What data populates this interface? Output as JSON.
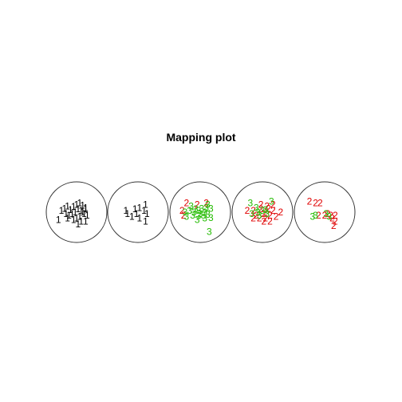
{
  "chart_data": {
    "type": "scatter",
    "title": "Mapping plot",
    "xlabel": "",
    "ylabel": "",
    "legend": "none",
    "grid": false,
    "series_colors": {
      "1": "#000000",
      "2": "#DF0000",
      "3": "#22BB00"
    },
    "panels": [
      {
        "name": "panel-1",
        "points": [
          {
            "x": -0.5,
            "y": 0.05,
            "label": "1"
          },
          {
            "x": -0.4,
            "y": 0.12,
            "label": "1"
          },
          {
            "x": -0.3,
            "y": 0.2,
            "label": "1"
          },
          {
            "x": -0.2,
            "y": 0.08,
            "label": "1"
          },
          {
            "x": -0.1,
            "y": 0.18,
            "label": "1"
          },
          {
            "x": 0.0,
            "y": 0.25,
            "label": "1"
          },
          {
            "x": 0.1,
            "y": 0.3,
            "label": "1"
          },
          {
            "x": 0.2,
            "y": 0.22,
            "label": "1"
          },
          {
            "x": 0.3,
            "y": 0.15,
            "label": "1"
          },
          {
            "x": 0.15,
            "y": 0.05,
            "label": "1"
          },
          {
            "x": 0.05,
            "y": 0.1,
            "label": "1"
          },
          {
            "x": -0.05,
            "y": 0.0,
            "label": "1"
          },
          {
            "x": -0.15,
            "y": -0.05,
            "label": "1"
          },
          {
            "x": -0.25,
            "y": -0.1,
            "label": "1"
          },
          {
            "x": -0.35,
            "y": -0.05,
            "label": "1"
          },
          {
            "x": 0.25,
            "y": -0.05,
            "label": "1"
          },
          {
            "x": 0.35,
            "y": -0.1,
            "label": "1"
          },
          {
            "x": 0.1,
            "y": -0.15,
            "label": "1"
          },
          {
            "x": 0.0,
            "y": -0.2,
            "label": "1"
          },
          {
            "x": 0.15,
            "y": -0.3,
            "label": "1"
          },
          {
            "x": 0.3,
            "y": -0.3,
            "label": "1"
          },
          {
            "x": -0.1,
            "y": -0.25,
            "label": "1"
          },
          {
            "x": 0.05,
            "y": -0.4,
            "label": "1"
          },
          {
            "x": 0.3,
            "y": 0.1,
            "label": "1"
          },
          {
            "x": -0.6,
            "y": -0.25,
            "label": "1"
          },
          {
            "x": 0.2,
            "y": 0.0,
            "label": "1"
          },
          {
            "x": -0.3,
            "y": -0.2,
            "label": "1"
          }
        ]
      },
      {
        "name": "panel-2",
        "points": [
          {
            "x": -0.4,
            "y": 0.05,
            "label": "1"
          },
          {
            "x": -0.35,
            "y": -0.05,
            "label": "1"
          },
          {
            "x": -0.2,
            "y": -0.15,
            "label": "1"
          },
          {
            "x": -0.1,
            "y": 0.1,
            "label": "1"
          },
          {
            "x": 0.05,
            "y": 0.15,
            "label": "1"
          },
          {
            "x": 0.2,
            "y": 0.05,
            "label": "1"
          },
          {
            "x": 0.25,
            "y": 0.25,
            "label": "1"
          },
          {
            "x": 0.3,
            "y": -0.05,
            "label": "1"
          },
          {
            "x": 0.05,
            "y": -0.2,
            "label": "1"
          },
          {
            "x": 0.25,
            "y": -0.3,
            "label": "1"
          },
          {
            "x": -0.05,
            "y": -0.05,
            "label": "1"
          }
        ]
      },
      {
        "name": "panel-3",
        "points": [
          {
            "x": -0.45,
            "y": 0.3,
            "label": "2"
          },
          {
            "x": -0.6,
            "y": 0.05,
            "label": "2"
          },
          {
            "x": -0.55,
            "y": -0.1,
            "label": "2"
          },
          {
            "x": -0.1,
            "y": 0.25,
            "label": "2"
          },
          {
            "x": 0.2,
            "y": 0.3,
            "label": "2"
          },
          {
            "x": -0.3,
            "y": 0.2,
            "label": "3"
          },
          {
            "x": 0.25,
            "y": 0.25,
            "label": "3"
          },
          {
            "x": -0.5,
            "y": 0.0,
            "label": "3"
          },
          {
            "x": -0.35,
            "y": 0.05,
            "label": "3"
          },
          {
            "x": -0.2,
            "y": 0.0,
            "label": "3"
          },
          {
            "x": -0.15,
            "y": 0.1,
            "label": "3"
          },
          {
            "x": -0.05,
            "y": 0.05,
            "label": "3"
          },
          {
            "x": 0.05,
            "y": 0.12,
            "label": "3"
          },
          {
            "x": 0.15,
            "y": 0.0,
            "label": "3"
          },
          {
            "x": 0.35,
            "y": 0.12,
            "label": "3"
          },
          {
            "x": 0.25,
            "y": -0.08,
            "label": "3"
          },
          {
            "x": 0.1,
            "y": -0.1,
            "label": "3"
          },
          {
            "x": -0.05,
            "y": -0.12,
            "label": "3"
          },
          {
            "x": -0.25,
            "y": -0.1,
            "label": "3"
          },
          {
            "x": -0.45,
            "y": -0.15,
            "label": "3"
          },
          {
            "x": 0.15,
            "y": -0.2,
            "label": "3"
          },
          {
            "x": -0.1,
            "y": -0.25,
            "label": "3"
          },
          {
            "x": 0.35,
            "y": -0.18,
            "label": "3"
          },
          {
            "x": 0.3,
            "y": -0.65,
            "label": "3"
          },
          {
            "x": 0.0,
            "y": -0.05,
            "label": "3"
          },
          {
            "x": 0.2,
            "y": 0.15,
            "label": "3"
          }
        ]
      },
      {
        "name": "panel-4",
        "points": [
          {
            "x": -0.5,
            "y": 0.05,
            "label": "2"
          },
          {
            "x": -0.3,
            "y": 0.05,
            "label": "2"
          },
          {
            "x": -0.2,
            "y": -0.1,
            "label": "2"
          },
          {
            "x": -0.05,
            "y": 0.1,
            "label": "2"
          },
          {
            "x": 0.05,
            "y": -0.05,
            "label": "2"
          },
          {
            "x": 0.2,
            "y": 0.12,
            "label": "2"
          },
          {
            "x": 0.35,
            "y": 0.05,
            "label": "2"
          },
          {
            "x": 0.45,
            "y": -0.15,
            "label": "2"
          },
          {
            "x": 0.25,
            "y": -0.1,
            "label": "2"
          },
          {
            "x": 0.1,
            "y": -0.2,
            "label": "2"
          },
          {
            "x": -0.1,
            "y": -0.2,
            "label": "2"
          },
          {
            "x": -0.3,
            "y": -0.2,
            "label": "2"
          },
          {
            "x": 0.05,
            "y": -0.3,
            "label": "2"
          },
          {
            "x": 0.25,
            "y": -0.3,
            "label": "2"
          },
          {
            "x": -0.05,
            "y": 0.25,
            "label": "2"
          },
          {
            "x": 0.15,
            "y": 0.2,
            "label": "2"
          },
          {
            "x": 0.35,
            "y": 0.25,
            "label": "2"
          },
          {
            "x": 0.6,
            "y": 0.0,
            "label": "2"
          },
          {
            "x": -0.4,
            "y": 0.3,
            "label": "3"
          },
          {
            "x": 0.3,
            "y": 0.35,
            "label": "3"
          },
          {
            "x": -0.35,
            "y": -0.05,
            "label": "3"
          },
          {
            "x": -0.15,
            "y": 0.0,
            "label": "3"
          },
          {
            "x": 0.0,
            "y": 0.05,
            "label": "3"
          },
          {
            "x": 0.15,
            "y": -0.05,
            "label": "3"
          },
          {
            "x": -0.2,
            "y": 0.15,
            "label": "3"
          },
          {
            "x": 0.1,
            "y": 0.08,
            "label": "3"
          },
          {
            "x": -0.1,
            "y": -0.1,
            "label": "3"
          }
        ]
      },
      {
        "name": "panel-5",
        "points": [
          {
            "x": -0.5,
            "y": 0.35,
            "label": "2"
          },
          {
            "x": -0.3,
            "y": 0.3,
            "label": "2"
          },
          {
            "x": -0.15,
            "y": 0.3,
            "label": "2"
          },
          {
            "x": -0.2,
            "y": -0.1,
            "label": "2"
          },
          {
            "x": 0.0,
            "y": -0.1,
            "label": "2"
          },
          {
            "x": 0.1,
            "y": -0.05,
            "label": "2"
          },
          {
            "x": 0.2,
            "y": -0.1,
            "label": "2"
          },
          {
            "x": 0.35,
            "y": -0.1,
            "label": "2"
          },
          {
            "x": 0.25,
            "y": -0.2,
            "label": "2"
          },
          {
            "x": 0.35,
            "y": -0.3,
            "label": "2"
          },
          {
            "x": 0.3,
            "y": -0.45,
            "label": "2"
          },
          {
            "x": -0.4,
            "y": -0.15,
            "label": "3"
          },
          {
            "x": -0.3,
            "y": -0.1,
            "label": "3"
          },
          {
            "x": 0.05,
            "y": -0.05,
            "label": "3"
          },
          {
            "x": 0.15,
            "y": -0.15,
            "label": "3"
          }
        ]
      }
    ]
  }
}
